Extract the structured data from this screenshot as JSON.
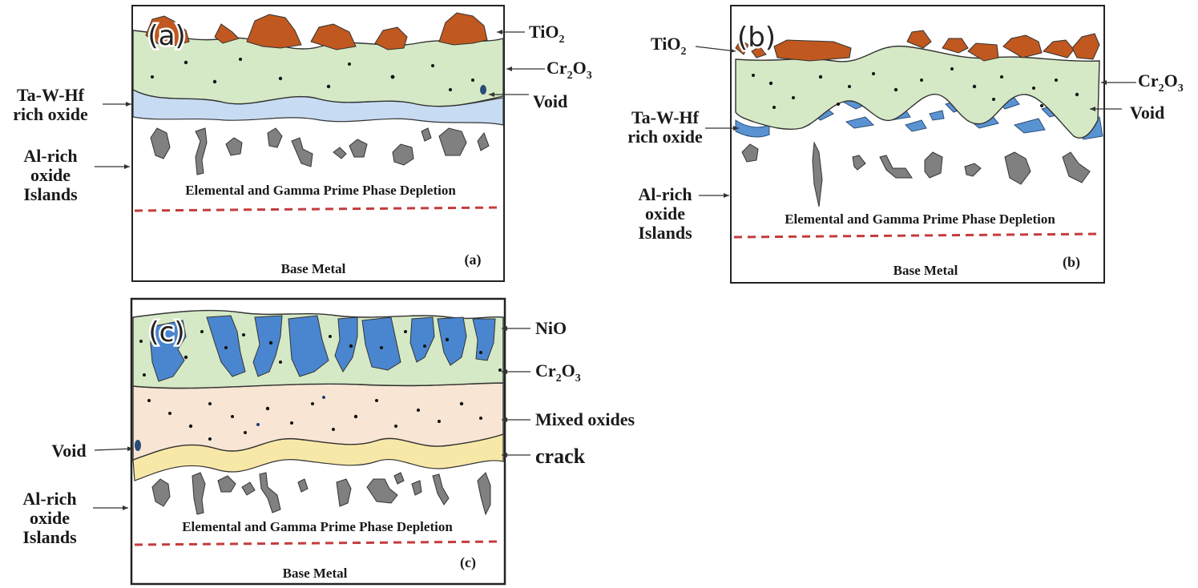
{
  "colors": {
    "tio2": "#c0581f",
    "cr2o3": "#d6e9c6",
    "ta_w_hf": "#c7dcf2",
    "nio": "#4a86cf",
    "mixed": "#f8e5d3",
    "crack": "#f8e8a8",
    "islands": "#808080",
    "depletion_line": "#c43c3c"
  },
  "panels": {
    "a": {
      "tag": "(a)",
      "corner_label": "(a)",
      "depletion_text": "Elemental and Gamma Prime Phase Depletion",
      "base_text": "Base Metal",
      "labels": {
        "tio2": "TiO",
        "tio2_sub": "2",
        "cr2o3_a": "Cr",
        "cr2o3_sub1": "2",
        "cr2o3_b": "O",
        "cr2o3_sub2": "3",
        "void": "Void",
        "tawhf_1": "Ta-W-Hf",
        "tawhf_2": "rich oxide",
        "al_1": "Al-rich",
        "al_2": "oxide",
        "al_3": "Islands"
      }
    },
    "b": {
      "tag": "(b)",
      "corner_label": "(b)",
      "depletion_text": "Elemental and Gamma Prime Phase Depletion",
      "base_text": "Base Metal",
      "labels": {
        "tio2": "TiO",
        "tio2_sub": "2",
        "cr2o3_a": "Cr",
        "cr2o3_sub1": "2",
        "cr2o3_b": "O",
        "cr2o3_sub2": "3",
        "void": "Void",
        "tawhf_1": "Ta-W-Hf",
        "tawhf_2": "rich oxide",
        "al_1": "Al-rich",
        "al_2": "oxide",
        "al_3": "Islands"
      }
    },
    "c": {
      "tag": "(c)",
      "corner_label": "(c)",
      "depletion_text": "Elemental and Gamma Prime Phase Depletion",
      "base_text": "Base Metal",
      "labels": {
        "nio": "NiO",
        "cr2o3_a": "Cr",
        "cr2o3_sub1": "2",
        "cr2o3_b": "O",
        "cr2o3_sub2": "3",
        "mixed": "Mixed oxides",
        "crack": "crack",
        "void": "Void",
        "al_1": "Al-rich",
        "al_2": "oxide",
        "al_3": "Islands"
      }
    }
  }
}
